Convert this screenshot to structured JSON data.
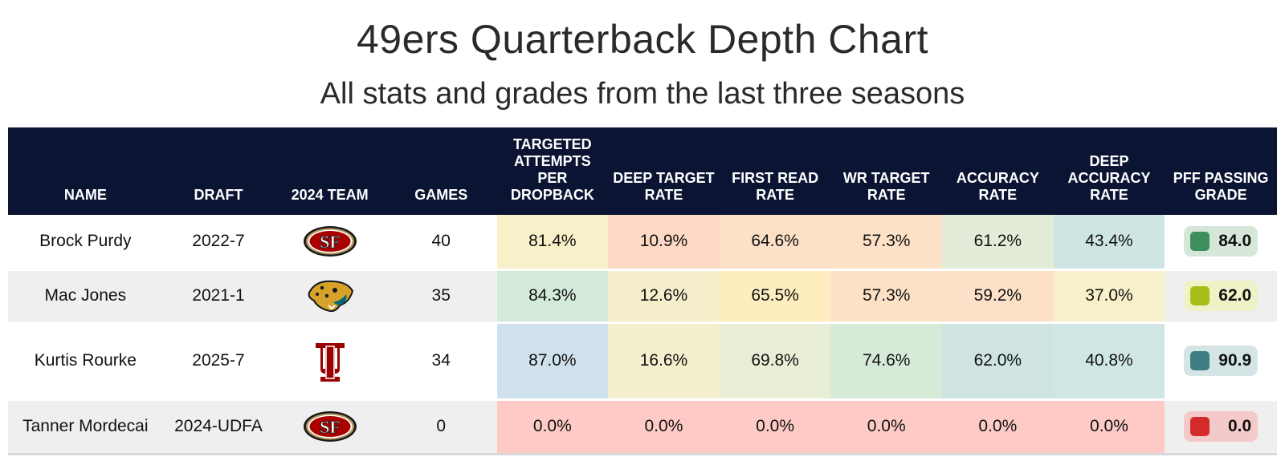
{
  "chart_data": {
    "type": "table",
    "title": "49ers Quarterback Depth Chart",
    "subtitle": "All stats and grades from the last three seasons",
    "columns": [
      "NAME",
      "DRAFT",
      "2024 TEAM",
      "GAMES",
      "TARGETED ATTEMPTS PER DROPBACK",
      "DEEP TARGET RATE",
      "FIRST READ RATE",
      "WR TARGET RATE",
      "ACCURACY RATE",
      "DEEP ACCURACY RATE",
      "PFF PASSING GRADE"
    ],
    "rows": [
      {
        "name": "Brock Purdy",
        "draft": "2022-7",
        "team_logo": "sf-49ers-logo",
        "games": "40",
        "stats": [
          "81.4%",
          "10.9%",
          "64.6%",
          "57.3%",
          "61.2%",
          "43.4%"
        ],
        "stat_colors": [
          "#f8f0c8",
          "#fdd9c5",
          "#fde1c7",
          "#fde1c7",
          "#e3ecd8",
          "#cfe5e3"
        ],
        "grade": "84.0",
        "grade_swatch": "#3d8f5e",
        "grade_bg": "#d6e7da"
      },
      {
        "name": "Mac Jones",
        "draft": "2021-1",
        "team_logo": "jaguars-logo",
        "games": "35",
        "stats": [
          "84.3%",
          "12.6%",
          "65.5%",
          "57.3%",
          "59.2%",
          "37.0%"
        ],
        "stat_colors": [
          "#d3ead9",
          "#f6efcc",
          "#fdedbf",
          "#fde1c7",
          "#fde0c8",
          "#f8f0c8"
        ],
        "grade": "62.0",
        "grade_swatch": "#a8bf1a",
        "grade_bg": "#eef2c6"
      },
      {
        "name": "Kurtis Rourke",
        "draft": "2025-7",
        "team_logo": "indiana-logo",
        "games": "34",
        "stats": [
          "87.0%",
          "16.6%",
          "69.8%",
          "74.6%",
          "62.0%",
          "40.8%"
        ],
        "stat_colors": [
          "#cfe1ec",
          "#f4efcd",
          "#e9eed6",
          "#d6ebd7",
          "#cfe3e3",
          "#d0e6e2"
        ],
        "grade": "90.9",
        "grade_swatch": "#3e7d80",
        "grade_bg": "#d5e5e6"
      },
      {
        "name": "Tanner Mordecai",
        "draft": "2024-UDFA",
        "team_logo": "sf-49ers-logo",
        "games": "0",
        "stats": [
          "0.0%",
          "0.0%",
          "0.0%",
          "0.0%",
          "0.0%",
          "0.0%"
        ],
        "stat_colors": [
          "#fdcac6",
          "#fdcac6",
          "#fdcac6",
          "#fdcac6",
          "#fdcac6",
          "#fdcac6"
        ],
        "grade": "0.0",
        "grade_swatch": "#d42a2a",
        "grade_bg": "#f4c9c9"
      }
    ],
    "colors": {
      "header_bg": "#0b1533",
      "stripe": "#efefef"
    }
  }
}
